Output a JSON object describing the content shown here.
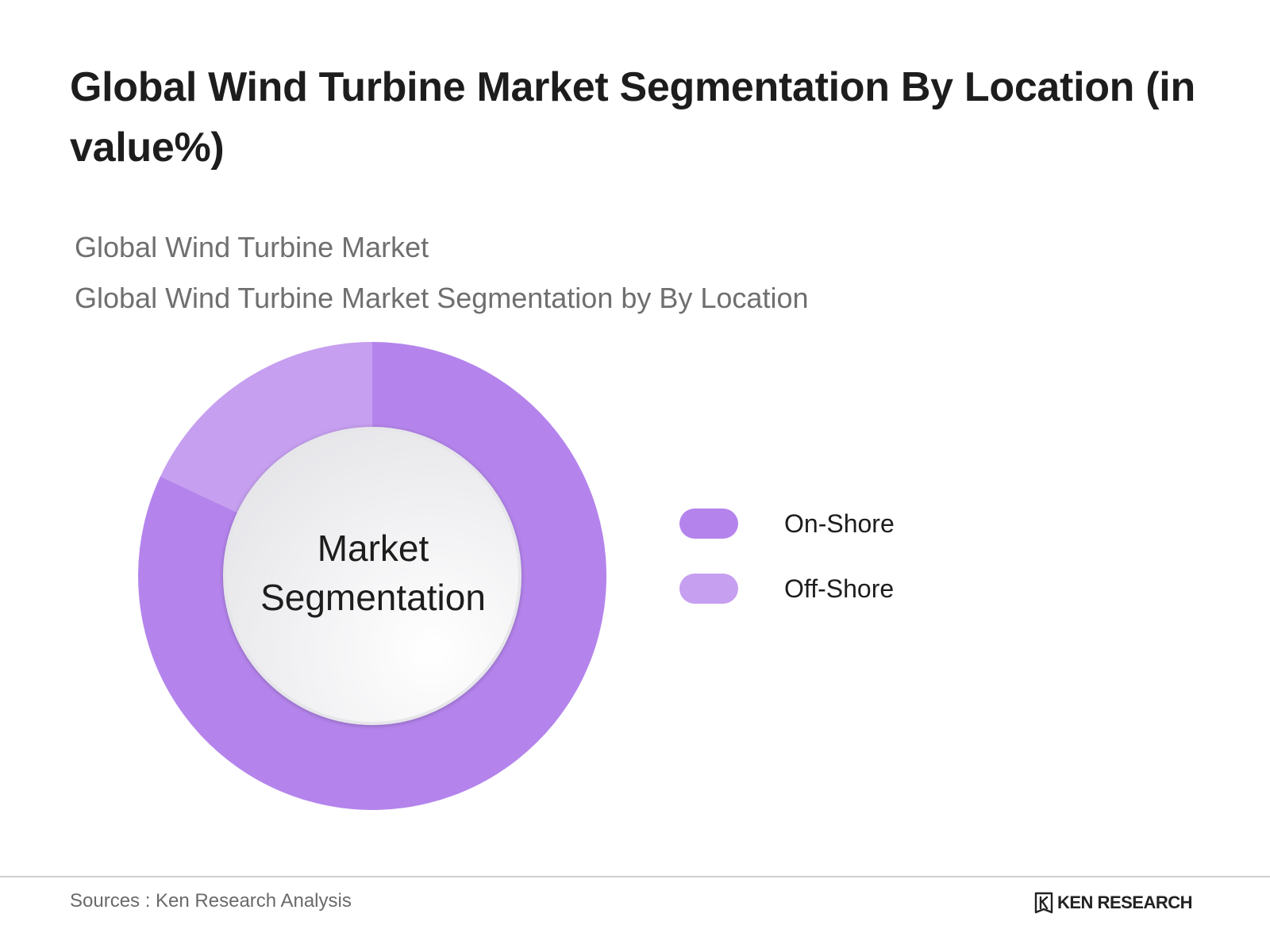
{
  "title": "Global Wind Turbine Market Segmentation By Location (in value%)",
  "subtitle_1": "Global Wind Turbine Market",
  "subtitle_2": "Global Wind Turbine Market Segmentation by By Location",
  "center_label_line1": "Market",
  "center_label_line2": "Segmentation",
  "source": "Sources : Ken Research Analysis",
  "brand": {
    "logo_icon": "ken-research-k-icon",
    "name": "KEN RESEARCH"
  },
  "colors": {
    "on_shore": "#b484ec",
    "off_shore": "#c69ff0"
  },
  "chart_data": {
    "type": "pie",
    "variant": "donut",
    "title": "Global Wind Turbine Market Segmentation By Location (in value%)",
    "subtitle": "Global Wind Turbine Market Segmentation by By Location",
    "legend_placement": "right",
    "categories": [
      "On-Shore",
      "Off-Shore"
    ],
    "values": [
      82,
      18
    ],
    "unit": "%",
    "data_labels_shown": false
  }
}
